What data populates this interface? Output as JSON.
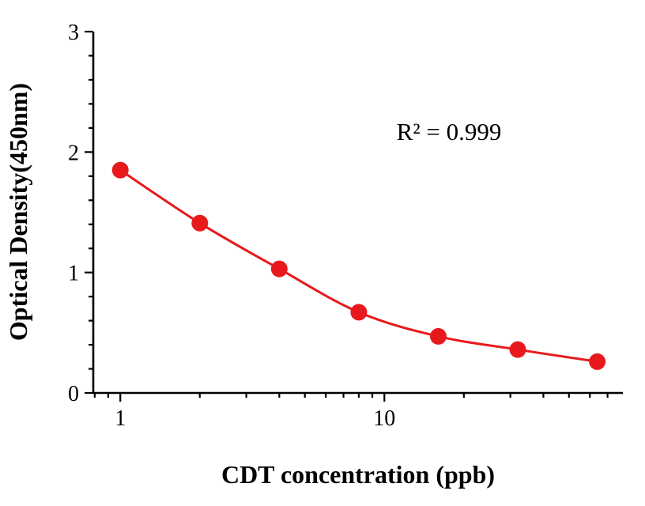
{
  "chart_data": {
    "type": "scatter",
    "title": "",
    "xlabel": "CDT concentration (ppb)",
    "ylabel": "Optical Density(450nm)",
    "annotation": "R² = 0.999",
    "x_scale": "log",
    "y_scale": "linear",
    "xlim": [
      0.79,
      80
    ],
    "ylim": [
      0,
      3
    ],
    "x_ticks_major": [
      1,
      10
    ],
    "x_ticks_minor": [
      0.8,
      0.9,
      2,
      3,
      4,
      5,
      6,
      7,
      8,
      9,
      20,
      30,
      40,
      50,
      60,
      70
    ],
    "y_ticks_major": [
      0,
      1,
      2,
      3
    ],
    "y_minor_step": 0.2,
    "grid": "off",
    "legend": "none",
    "series": [
      {
        "name": "standard-curve",
        "x": [
          1,
          2,
          4,
          8,
          16,
          32,
          64
        ],
        "y": [
          1.85,
          1.41,
          1.03,
          0.67,
          0.47,
          0.36,
          0.26
        ]
      }
    ],
    "point_color": "#e8191c",
    "line_color": "#e8191c",
    "axis_color": "#000000"
  }
}
